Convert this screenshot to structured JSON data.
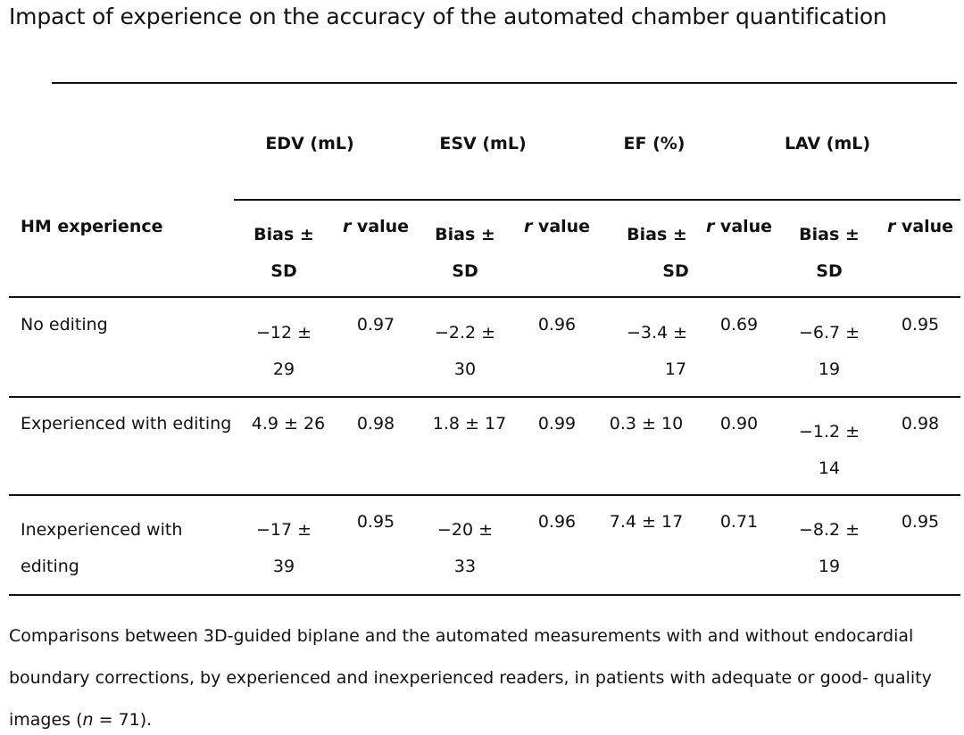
{
  "title": "Impact of experience on the accuracy of the automated chamber quantification",
  "table": {
    "row_header": "HM experience",
    "groups": [
      "EDV (mL)",
      "ESV (mL)",
      "EF (%)",
      "LAV (mL)"
    ],
    "sub": {
      "bias_line1": "Bias ±",
      "bias_line2": "SD",
      "r_italic": "r",
      "r_rest": " value"
    },
    "rows": [
      {
        "label_lines": [
          "No editing"
        ],
        "edv": {
          "bias": [
            "−12 ±",
            "29"
          ],
          "r": "0.97"
        },
        "esv": {
          "bias": [
            "−2.2 ±",
            "30"
          ],
          "r": "0.96"
        },
        "ef": {
          "bias": [
            "−3.4 ±",
            "17"
          ],
          "r": "0.69"
        },
        "lav": {
          "bias": [
            "−6.7 ±",
            "19"
          ],
          "r": "0.95"
        }
      },
      {
        "label_lines": [
          "Experienced with editing"
        ],
        "edv": {
          "bias": [
            "4.9 ± 26"
          ],
          "r": "0.98"
        },
        "esv": {
          "bias": [
            "1.8 ± 17"
          ],
          "r": "0.99"
        },
        "ef": {
          "bias": [
            "0.3 ± 10"
          ],
          "r": "0.90"
        },
        "lav": {
          "bias": [
            "−1.2 ±",
            "14"
          ],
          "r": "0.98"
        }
      },
      {
        "label_lines": [
          "Inexperienced with",
          "editing"
        ],
        "edv": {
          "bias": [
            "−17 ±",
            "39"
          ],
          "r": "0.95"
        },
        "esv": {
          "bias": [
            "−20 ±",
            "33"
          ],
          "r": "0.96"
        },
        "ef": {
          "bias": [
            "7.4 ± 17"
          ],
          "r": "0.71"
        },
        "lav": {
          "bias": [
            "−8.2 ±",
            "19"
          ],
          "r": "0.95"
        }
      }
    ]
  },
  "caption": {
    "line1": "Comparisons between 3D-guided biplane and the automated measurements with and without endocardial",
    "line2": "boundary corrections, by experienced and inexperienced readers, in patients with adequate or good- quality",
    "line3_pre": "images (",
    "line3_n": "n",
    "line3_post": " = 71)."
  }
}
